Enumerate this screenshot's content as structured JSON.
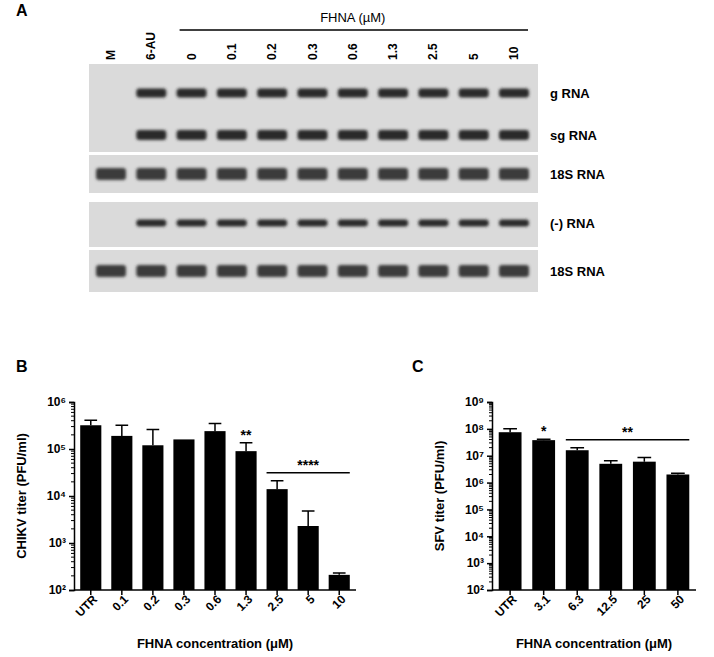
{
  "blot": {
    "panel": "A",
    "header": "FHNA (µM)",
    "lanes": [
      "M",
      "6-AU",
      "0",
      "0.1",
      "0.2",
      "0.3",
      "0.6",
      "1.3",
      "2.5",
      "5",
      "10"
    ],
    "band_labels": [
      "g RNA",
      "sg RNA",
      "18S RNA",
      "(-) RNA",
      "18S RNA"
    ]
  },
  "chart_data": [
    {
      "type": "bar",
      "title": "B",
      "x_label": "FHNA concentration (μM)",
      "y_label": "CHIKV titer (PFU/ml)",
      "categories": [
        "UTR",
        "0.1",
        "0.2",
        "0.3",
        "0.6",
        "1.3",
        "2.5",
        "5",
        "10"
      ],
      "values": [
        320000,
        190000,
        120000,
        160000,
        240000,
        90000,
        14000,
        2300,
        210
      ],
      "errors": [
        90000,
        130000,
        140000,
        0,
        110000,
        45000,
        7000,
        2500,
        20
      ],
      "color": "#000000",
      "log": "y",
      "ylim": [
        100,
        1000000
      ],
      "yticks": [
        {
          "value": 100,
          "label": "10²"
        },
        {
          "value": 1000,
          "label": "10³"
        },
        {
          "value": 10000,
          "label": "10⁴"
        },
        {
          "value": 100000,
          "label": "10⁵"
        },
        {
          "value": 1000000,
          "label": "10⁶"
        }
      ],
      "annotations": [
        {
          "text": "**",
          "categories": [
            "1.3"
          ]
        },
        {
          "text": "****",
          "categories": [
            "2.5",
            "5",
            "10"
          ]
        }
      ]
    },
    {
      "type": "bar",
      "title": "C",
      "x_label": "FHNA concentration (μM)",
      "y_label": "SFV titer (PFU/ml)",
      "categories": [
        "UTR",
        "3.1",
        "6.3",
        "12.5",
        "25",
        "50"
      ],
      "values": [
        75000000,
        38000000,
        16000000,
        5000000,
        6000000,
        2000000
      ],
      "errors": [
        25000000,
        3000000,
        4000000,
        1500000,
        2500000,
        200000
      ],
      "color": "#000000",
      "log": "y",
      "ylim": [
        100,
        1000000000
      ],
      "yticks": [
        {
          "value": 100,
          "label": "10²"
        },
        {
          "value": 1000,
          "label": "10³"
        },
        {
          "value": 10000,
          "label": "10⁴"
        },
        {
          "value": 100000,
          "label": "10⁵"
        },
        {
          "value": 1000000,
          "label": "10⁶"
        },
        {
          "value": 10000000,
          "label": "10⁷"
        },
        {
          "value": 100000000,
          "label": "10⁸"
        },
        {
          "value": 1000000000,
          "label": "10⁹"
        }
      ],
      "annotations": [
        {
          "text": "*",
          "categories": [
            "3.1"
          ]
        },
        {
          "text": "**",
          "categories": [
            "6.3",
            "12.5",
            "25",
            "50"
          ]
        }
      ]
    }
  ]
}
